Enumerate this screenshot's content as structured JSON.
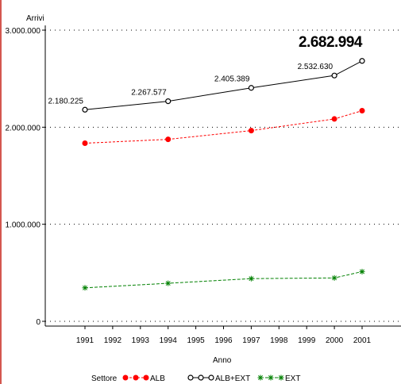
{
  "chart_data": {
    "type": "line",
    "ylabel": "Arrivi",
    "xlabel": "Anno",
    "ylim": [
      0,
      3000000
    ],
    "xlim": [
      1990,
      2002.5
    ],
    "x_ticks": [
      "1991",
      "1992",
      "1993",
      "1994",
      "1995",
      "1996",
      "1997",
      "1998",
      "1999",
      "2000",
      "2001"
    ],
    "y_ticks": [
      {
        "value": 0,
        "label": "0"
      },
      {
        "value": 1000000,
        "label": "1.000.000"
      },
      {
        "value": 2000000,
        "label": "2.000.000"
      },
      {
        "value": 3000000,
        "label": "3.000.000"
      }
    ],
    "x": [
      1991,
      1994,
      1997,
      2000,
      2001
    ],
    "grid": true,
    "legend_title": "Settore",
    "legend_position": "bottom",
    "series": [
      {
        "name": "ALB",
        "color": "#ff0000",
        "marker": "filled-circle",
        "dash": "3,2",
        "values": [
          1835000,
          1875000,
          1965000,
          2085000,
          2170000
        ]
      },
      {
        "name": "ALB+EXT",
        "color": "#000000",
        "marker": "open-circle",
        "dash": "",
        "values": [
          2180225,
          2267577,
          2405389,
          2532630,
          2682994
        ],
        "point_labels": [
          "2.180.225",
          "2.267.577",
          "2.405.389",
          "2.532.630",
          "2.682.994"
        ],
        "emphasized_label_index": 4
      },
      {
        "name": "EXT",
        "color": "#008000",
        "marker": "star",
        "dash": "4,2",
        "values": [
          345000,
          392000,
          440000,
          447000,
          512000
        ]
      }
    ]
  }
}
